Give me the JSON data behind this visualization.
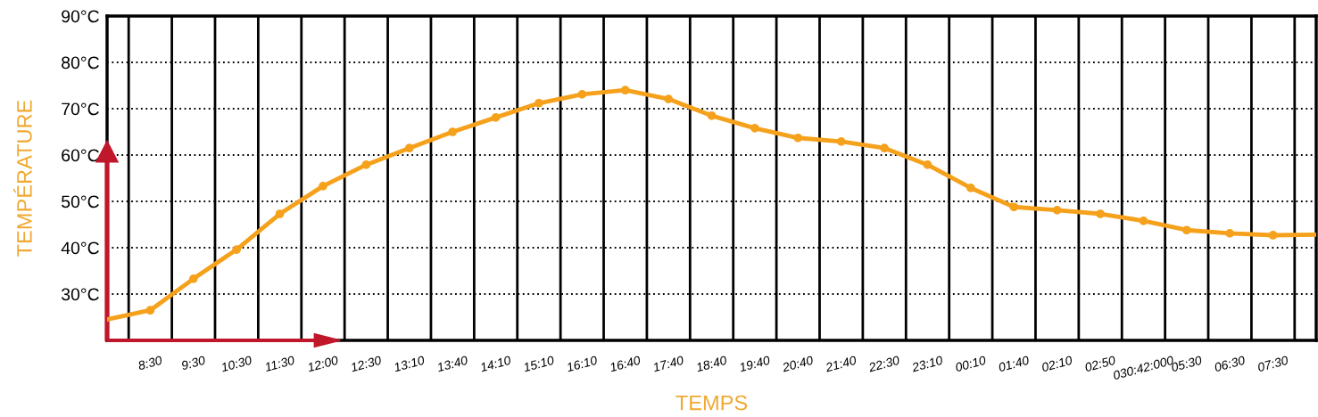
{
  "chart_data": {
    "type": "line",
    "xlabel": "TEMPS",
    "ylabel": "TEMPÉRATURE",
    "categories": [
      null,
      "8:30",
      "9:30",
      "10:30",
      "11:30",
      "12:00",
      "12:30",
      "13:10",
      "13:40",
      "14:10",
      "15:10",
      "16:10",
      "16:40",
      "17:40",
      "18:40",
      "19:40",
      "20:40",
      "21:40",
      "22:30",
      "23:10",
      "00:10",
      "01:40",
      "02:10",
      "02:50",
      "030:42:000",
      "05:30",
      "06:30",
      "07:30",
      null
    ],
    "series": [
      {
        "color": "#f5a11c",
        "values": [
          24.5,
          26.5,
          33.3,
          39.6,
          47.3,
          53.3,
          57.9,
          61.5,
          65.0,
          68.1,
          71.2,
          73.1,
          74.0,
          72.1,
          68.5,
          65.8,
          63.7,
          62.9,
          61.5,
          57.9,
          52.9,
          48.8,
          48.1,
          47.3,
          45.8,
          43.8,
          43.1,
          42.7,
          42.8
        ]
      }
    ],
    "ylim": [
      20,
      90
    ],
    "yticks": [
      {
        "value": 30,
        "label": "30°C"
      },
      {
        "value": 40,
        "label": "40°C"
      },
      {
        "value": 50,
        "label": "50°C"
      },
      {
        "value": 60,
        "label": "60°C"
      },
      {
        "value": 70,
        "label": "70°C"
      },
      {
        "value": 80,
        "label": "80°C"
      },
      {
        "value": 90,
        "label": "90°C"
      }
    ],
    "grid": true,
    "marker": "circle",
    "line_style": "solid",
    "legend": false
  }
}
